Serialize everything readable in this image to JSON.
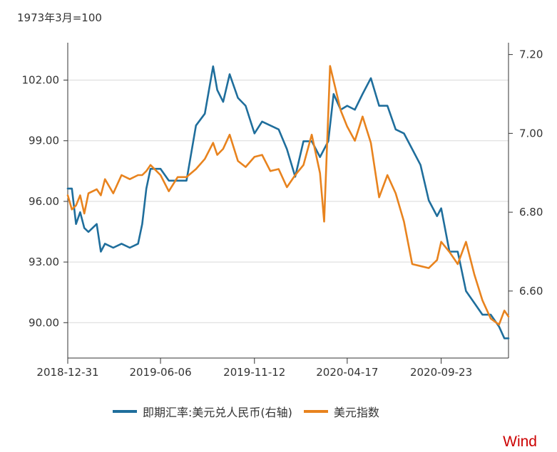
{
  "unit_note": "1973年3月=100",
  "watermark": "Wind",
  "legend": [
    {
      "label": "即期汇率:美元兑人民币(右轴)",
      "color": "#1f6e9c"
    },
    {
      "label": "美元指数",
      "color": "#e8831e"
    }
  ],
  "chart_data": {
    "type": "line",
    "x_ticks": [
      "2018-12-31",
      "2019-06-06",
      "2019-11-12",
      "2020-04-17",
      "2020-09-23"
    ],
    "x_range": [
      "2018-12-31",
      "2021-01-15"
    ],
    "y_left": {
      "range": [
        88.25,
        103.85
      ],
      "ticks": [
        "102.00",
        "99.00",
        "96.00",
        "93.00",
        "90.00"
      ]
    },
    "y_right": {
      "range": [
        6.43,
        7.23
      ],
      "ticks": [
        "7.20",
        "7.00",
        "6.80",
        "6.60"
      ]
    },
    "grid": true,
    "legend_position": "bottom",
    "series": [
      {
        "name": "即期汇率:美元兑人民币(右轴)",
        "axis": "right",
        "color": "#1f6e9c",
        "points": [
          [
            "2018-12-31",
            6.86
          ],
          [
            "2019-01-07",
            6.86
          ],
          [
            "2019-01-14",
            6.77
          ],
          [
            "2019-01-21",
            6.8
          ],
          [
            "2019-01-28",
            6.76
          ],
          [
            "2019-02-04",
            6.75
          ],
          [
            "2019-02-18",
            6.77
          ],
          [
            "2019-02-25",
            6.7
          ],
          [
            "2019-03-04",
            6.72
          ],
          [
            "2019-03-18",
            6.71
          ],
          [
            "2019-04-01",
            6.72
          ],
          [
            "2019-04-15",
            6.71
          ],
          [
            "2019-04-29",
            6.72
          ],
          [
            "2019-05-06",
            6.77
          ],
          [
            "2019-05-13",
            6.86
          ],
          [
            "2019-05-20",
            6.91
          ],
          [
            "2019-06-06",
            6.91
          ],
          [
            "2019-06-20",
            6.88
          ],
          [
            "2019-07-05",
            6.88
          ],
          [
            "2019-07-20",
            6.88
          ],
          [
            "2019-08-05",
            7.02
          ],
          [
            "2019-08-20",
            7.05
          ],
          [
            "2019-09-03",
            7.17
          ],
          [
            "2019-09-10",
            7.11
          ],
          [
            "2019-09-20",
            7.08
          ],
          [
            "2019-10-01",
            7.15
          ],
          [
            "2019-10-15",
            7.09
          ],
          [
            "2019-10-28",
            7.07
          ],
          [
            "2019-11-12",
            7.0
          ],
          [
            "2019-11-25",
            7.03
          ],
          [
            "2019-12-09",
            7.02
          ],
          [
            "2019-12-23",
            7.01
          ],
          [
            "2020-01-06",
            6.96
          ],
          [
            "2020-01-20",
            6.89
          ],
          [
            "2020-02-03",
            6.98
          ],
          [
            "2020-02-17",
            6.98
          ],
          [
            "2020-03-02",
            6.94
          ],
          [
            "2020-03-16",
            6.98
          ],
          [
            "2020-03-25",
            7.1
          ],
          [
            "2020-04-06",
            7.06
          ],
          [
            "2020-04-17",
            7.07
          ],
          [
            "2020-04-30",
            7.06
          ],
          [
            "2020-05-13",
            7.1
          ],
          [
            "2020-05-27",
            7.14
          ],
          [
            "2020-06-10",
            7.07
          ],
          [
            "2020-06-24",
            7.07
          ],
          [
            "2020-07-08",
            7.01
          ],
          [
            "2020-07-22",
            7.0
          ],
          [
            "2020-08-05",
            6.96
          ],
          [
            "2020-08-19",
            6.92
          ],
          [
            "2020-09-02",
            6.83
          ],
          [
            "2020-09-16",
            6.79
          ],
          [
            "2020-09-23",
            6.81
          ],
          [
            "2020-10-07",
            6.7
          ],
          [
            "2020-10-21",
            6.7
          ],
          [
            "2020-11-04",
            6.6
          ],
          [
            "2020-11-18",
            6.57
          ],
          [
            "2020-12-02",
            6.54
          ],
          [
            "2020-12-16",
            6.54
          ],
          [
            "2020-12-30",
            6.51
          ],
          [
            "2021-01-08",
            6.48
          ],
          [
            "2021-01-15",
            6.48
          ]
        ]
      },
      {
        "name": "美元指数",
        "axis": "left",
        "color": "#e8831e",
        "points": [
          [
            "2018-12-31",
            96.3
          ],
          [
            "2019-01-07",
            95.6
          ],
          [
            "2019-01-14",
            95.8
          ],
          [
            "2019-01-21",
            96.3
          ],
          [
            "2019-01-28",
            95.4
          ],
          [
            "2019-02-04",
            96.4
          ],
          [
            "2019-02-18",
            96.6
          ],
          [
            "2019-02-25",
            96.3
          ],
          [
            "2019-03-04",
            97.1
          ],
          [
            "2019-03-18",
            96.4
          ],
          [
            "2019-04-01",
            97.3
          ],
          [
            "2019-04-15",
            97.1
          ],
          [
            "2019-04-29",
            97.3
          ],
          [
            "2019-05-06",
            97.3
          ],
          [
            "2019-05-13",
            97.5
          ],
          [
            "2019-05-20",
            97.8
          ],
          [
            "2019-06-06",
            97.3
          ],
          [
            "2019-06-20",
            96.5
          ],
          [
            "2019-07-05",
            97.2
          ],
          [
            "2019-07-20",
            97.2
          ],
          [
            "2019-08-05",
            97.6
          ],
          [
            "2019-08-20",
            98.1
          ],
          [
            "2019-09-03",
            98.9
          ],
          [
            "2019-09-10",
            98.3
          ],
          [
            "2019-09-20",
            98.6
          ],
          [
            "2019-10-01",
            99.3
          ],
          [
            "2019-10-15",
            98.0
          ],
          [
            "2019-10-28",
            97.7
          ],
          [
            "2019-11-12",
            98.2
          ],
          [
            "2019-11-25",
            98.3
          ],
          [
            "2019-12-09",
            97.5
          ],
          [
            "2019-12-23",
            97.6
          ],
          [
            "2020-01-06",
            96.7
          ],
          [
            "2020-01-20",
            97.3
          ],
          [
            "2020-02-03",
            97.8
          ],
          [
            "2020-02-17",
            99.3
          ],
          [
            "2020-03-02",
            97.4
          ],
          [
            "2020-03-09",
            95.0
          ],
          [
            "2020-03-19",
            102.7
          ],
          [
            "2020-04-06",
            100.5
          ],
          [
            "2020-04-17",
            99.7
          ],
          [
            "2020-04-30",
            99.0
          ],
          [
            "2020-05-13",
            100.2
          ],
          [
            "2020-05-27",
            98.9
          ],
          [
            "2020-06-10",
            96.2
          ],
          [
            "2020-06-24",
            97.3
          ],
          [
            "2020-07-08",
            96.4
          ],
          [
            "2020-07-22",
            95.0
          ],
          [
            "2020-08-05",
            92.9
          ],
          [
            "2020-08-19",
            92.8
          ],
          [
            "2020-09-02",
            92.7
          ],
          [
            "2020-09-16",
            93.1
          ],
          [
            "2020-09-23",
            94.0
          ],
          [
            "2020-10-07",
            93.5
          ],
          [
            "2020-10-21",
            92.9
          ],
          [
            "2020-11-04",
            94.0
          ],
          [
            "2020-11-18",
            92.4
          ],
          [
            "2020-12-02",
            91.1
          ],
          [
            "2020-12-16",
            90.2
          ],
          [
            "2020-12-30",
            89.9
          ],
          [
            "2021-01-08",
            90.6
          ],
          [
            "2021-01-15",
            90.3
          ]
        ]
      }
    ]
  }
}
